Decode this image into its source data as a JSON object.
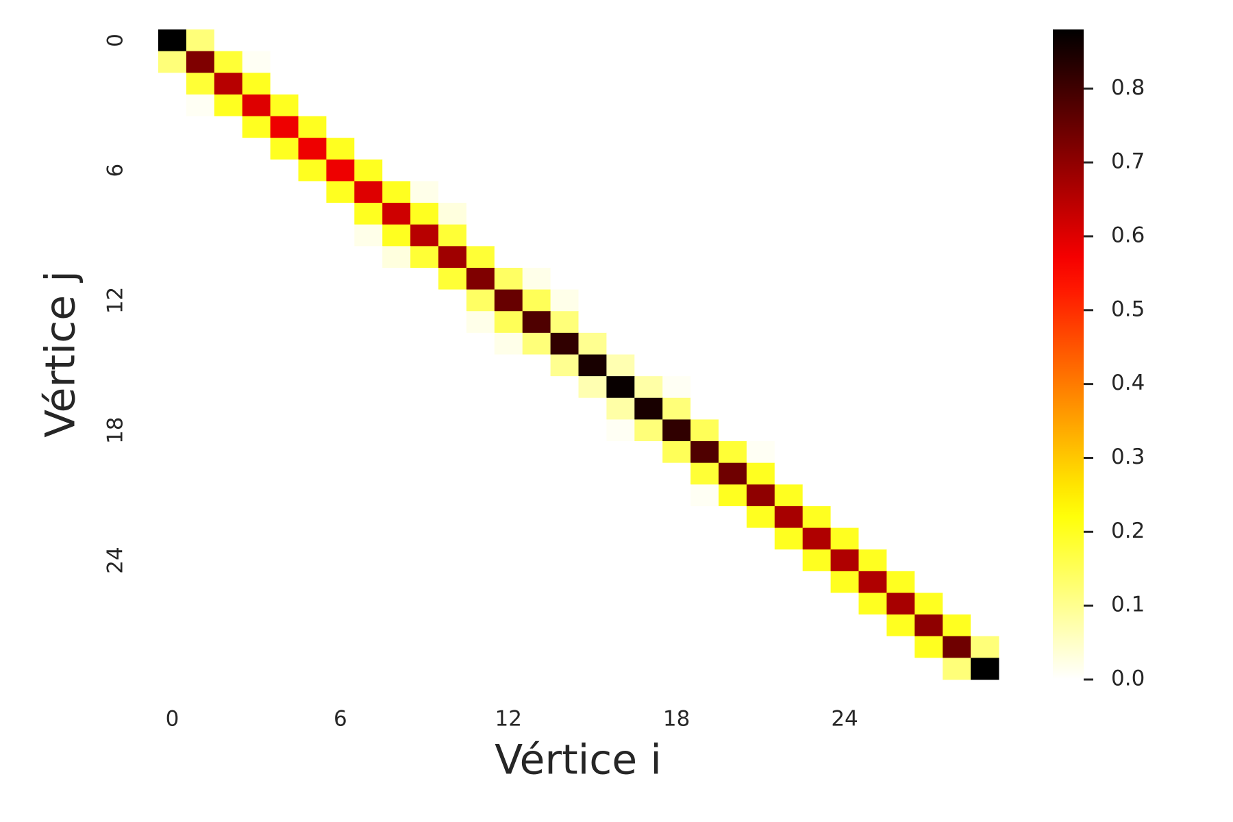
{
  "chart_data": {
    "type": "heatmap",
    "colormap": "hot_r",
    "xlabel": "Vértice i",
    "ylabel": "Vértice j",
    "xticks": [
      0,
      6,
      12,
      18,
      24
    ],
    "yticks": [
      0,
      6,
      12,
      18,
      24
    ],
    "zlim": [
      0,
      0.88
    ],
    "cticks": [
      {
        "value": 0,
        "label": "0.0"
      },
      0.1,
      0.2,
      0.3,
      0.4,
      0.5,
      0.6,
      0.7,
      0.8
    ],
    "z": [
      [
        0.88,
        0.12,
        0,
        0,
        0,
        0,
        0,
        0,
        0,
        0,
        0,
        0,
        0,
        0,
        0,
        0,
        0,
        0,
        0,
        0,
        0,
        0,
        0,
        0,
        0,
        0,
        0,
        0,
        0,
        0
      ],
      [
        0.12,
        0.72,
        0.18,
        0.01,
        0,
        0,
        0,
        0,
        0,
        0,
        0,
        0,
        0,
        0,
        0,
        0,
        0,
        0,
        0,
        0,
        0,
        0,
        0,
        0,
        0,
        0,
        0,
        0,
        0,
        0
      ],
      [
        0,
        0.18,
        0.65,
        0.2,
        0,
        0,
        0,
        0,
        0,
        0,
        0,
        0,
        0,
        0,
        0,
        0,
        0,
        0,
        0,
        0,
        0,
        0,
        0,
        0,
        0,
        0,
        0,
        0,
        0,
        0
      ],
      [
        0,
        0.01,
        0.2,
        0.6,
        0.2,
        0,
        0,
        0,
        0,
        0,
        0,
        0,
        0,
        0,
        0,
        0,
        0,
        0,
        0,
        0,
        0,
        0,
        0,
        0,
        0,
        0,
        0,
        0,
        0,
        0
      ],
      [
        0,
        0,
        0,
        0.2,
        0.58,
        0.2,
        0,
        0,
        0,
        0,
        0,
        0,
        0,
        0,
        0,
        0,
        0,
        0,
        0,
        0,
        0,
        0,
        0,
        0,
        0,
        0,
        0,
        0,
        0,
        0
      ],
      [
        0,
        0,
        0,
        0,
        0.2,
        0.58,
        0.2,
        0,
        0,
        0,
        0,
        0,
        0,
        0,
        0,
        0,
        0,
        0,
        0,
        0,
        0,
        0,
        0,
        0,
        0,
        0,
        0,
        0,
        0,
        0
      ],
      [
        0,
        0,
        0,
        0,
        0,
        0.2,
        0.58,
        0.2,
        0,
        0,
        0,
        0,
        0,
        0,
        0,
        0,
        0,
        0,
        0,
        0,
        0,
        0,
        0,
        0,
        0,
        0,
        0,
        0,
        0,
        0
      ],
      [
        0,
        0,
        0,
        0,
        0,
        0,
        0.2,
        0.6,
        0.2,
        0.02,
        0,
        0,
        0,
        0,
        0,
        0,
        0,
        0,
        0,
        0,
        0,
        0,
        0,
        0,
        0,
        0,
        0,
        0,
        0,
        0
      ],
      [
        0,
        0,
        0,
        0,
        0,
        0,
        0,
        0.2,
        0.62,
        0.2,
        0.03,
        0,
        0,
        0,
        0,
        0,
        0,
        0,
        0,
        0,
        0,
        0,
        0,
        0,
        0,
        0,
        0,
        0,
        0,
        0
      ],
      [
        0,
        0,
        0,
        0,
        0,
        0,
        0,
        0.02,
        0.2,
        0.65,
        0.18,
        0,
        0,
        0,
        0,
        0,
        0,
        0,
        0,
        0,
        0,
        0,
        0,
        0,
        0,
        0,
        0,
        0,
        0,
        0
      ],
      [
        0,
        0,
        0,
        0,
        0,
        0,
        0,
        0,
        0.03,
        0.18,
        0.68,
        0.18,
        0,
        0,
        0,
        0,
        0,
        0,
        0,
        0,
        0,
        0,
        0,
        0,
        0,
        0,
        0,
        0,
        0,
        0
      ],
      [
        0,
        0,
        0,
        0,
        0,
        0,
        0,
        0,
        0,
        0,
        0.18,
        0.72,
        0.14,
        0.02,
        0,
        0,
        0,
        0,
        0,
        0,
        0,
        0,
        0,
        0,
        0,
        0,
        0,
        0,
        0,
        0
      ],
      [
        0,
        0,
        0,
        0,
        0,
        0,
        0,
        0,
        0,
        0,
        0,
        0.14,
        0.75,
        0.15,
        0.02,
        0,
        0,
        0,
        0,
        0,
        0,
        0,
        0,
        0,
        0,
        0,
        0,
        0,
        0,
        0
      ],
      [
        0,
        0,
        0,
        0,
        0,
        0,
        0,
        0,
        0,
        0,
        0,
        0.02,
        0.15,
        0.78,
        0.12,
        0,
        0,
        0,
        0,
        0,
        0,
        0,
        0,
        0,
        0,
        0,
        0,
        0,
        0,
        0
      ],
      [
        0,
        0,
        0,
        0,
        0,
        0,
        0,
        0,
        0,
        0,
        0,
        0,
        0.02,
        0.12,
        0.82,
        0.1,
        0,
        0,
        0,
        0,
        0,
        0,
        0,
        0,
        0,
        0,
        0,
        0,
        0,
        0
      ],
      [
        0,
        0,
        0,
        0,
        0,
        0,
        0,
        0,
        0,
        0,
        0,
        0,
        0,
        0,
        0.1,
        0.85,
        0.07,
        0,
        0,
        0,
        0,
        0,
        0,
        0,
        0,
        0,
        0,
        0,
        0,
        0
      ],
      [
        0,
        0,
        0,
        0,
        0,
        0,
        0,
        0,
        0,
        0,
        0,
        0,
        0,
        0,
        0,
        0.07,
        0.87,
        0.08,
        0.01,
        0,
        0,
        0,
        0,
        0,
        0,
        0,
        0,
        0,
        0,
        0
      ],
      [
        0,
        0,
        0,
        0,
        0,
        0,
        0,
        0,
        0,
        0,
        0,
        0,
        0,
        0,
        0,
        0,
        0.08,
        0.85,
        0.12,
        0,
        0,
        0,
        0,
        0,
        0,
        0,
        0,
        0,
        0,
        0
      ],
      [
        0,
        0,
        0,
        0,
        0,
        0,
        0,
        0,
        0,
        0,
        0,
        0,
        0,
        0,
        0,
        0,
        0.01,
        0.12,
        0.82,
        0.15,
        0,
        0,
        0,
        0,
        0,
        0,
        0,
        0,
        0,
        0
      ],
      [
        0,
        0,
        0,
        0,
        0,
        0,
        0,
        0,
        0,
        0,
        0,
        0,
        0,
        0,
        0,
        0,
        0,
        0,
        0.15,
        0.78,
        0.18,
        0.01,
        0,
        0,
        0,
        0,
        0,
        0,
        0,
        0
      ],
      [
        0,
        0,
        0,
        0,
        0,
        0,
        0,
        0,
        0,
        0,
        0,
        0,
        0,
        0,
        0,
        0,
        0,
        0,
        0,
        0.18,
        0.74,
        0.2,
        0,
        0,
        0,
        0,
        0,
        0,
        0,
        0
      ],
      [
        0,
        0,
        0,
        0,
        0,
        0,
        0,
        0,
        0,
        0,
        0,
        0,
        0,
        0,
        0,
        0,
        0,
        0,
        0,
        0.01,
        0.2,
        0.7,
        0.2,
        0,
        0,
        0,
        0,
        0,
        0,
        0
      ],
      [
        0,
        0,
        0,
        0,
        0,
        0,
        0,
        0,
        0,
        0,
        0,
        0,
        0,
        0,
        0,
        0,
        0,
        0,
        0,
        0,
        0,
        0.2,
        0.67,
        0.2,
        0,
        0,
        0,
        0,
        0,
        0
      ],
      [
        0,
        0,
        0,
        0,
        0,
        0,
        0,
        0,
        0,
        0,
        0,
        0,
        0,
        0,
        0,
        0,
        0,
        0,
        0,
        0,
        0,
        0,
        0.2,
        0.66,
        0.2,
        0,
        0,
        0,
        0,
        0
      ],
      [
        0,
        0,
        0,
        0,
        0,
        0,
        0,
        0,
        0,
        0,
        0,
        0,
        0,
        0,
        0,
        0,
        0,
        0,
        0,
        0,
        0,
        0,
        0,
        0.2,
        0.66,
        0.2,
        0,
        0,
        0,
        0
      ],
      [
        0,
        0,
        0,
        0,
        0,
        0,
        0,
        0,
        0,
        0,
        0,
        0,
        0,
        0,
        0,
        0,
        0,
        0,
        0,
        0,
        0,
        0,
        0,
        0,
        0.2,
        0.66,
        0.2,
        0,
        0,
        0
      ],
      [
        0,
        0,
        0,
        0,
        0,
        0,
        0,
        0,
        0,
        0,
        0,
        0,
        0,
        0,
        0,
        0,
        0,
        0,
        0,
        0,
        0,
        0,
        0,
        0,
        0,
        0.2,
        0.67,
        0.2,
        0,
        0
      ],
      [
        0,
        0,
        0,
        0,
        0,
        0,
        0,
        0,
        0,
        0,
        0,
        0,
        0,
        0,
        0,
        0,
        0,
        0,
        0,
        0,
        0,
        0,
        0,
        0,
        0,
        0,
        0.2,
        0.7,
        0.2,
        0
      ],
      [
        0,
        0,
        0,
        0,
        0,
        0,
        0,
        0,
        0,
        0,
        0,
        0,
        0,
        0,
        0,
        0,
        0,
        0,
        0,
        0,
        0,
        0,
        0,
        0,
        0,
        0,
        0,
        0.2,
        0.74,
        0.12
      ],
      [
        0,
        0,
        0,
        0,
        0,
        0,
        0,
        0,
        0,
        0,
        0,
        0,
        0,
        0,
        0,
        0,
        0,
        0,
        0,
        0,
        0,
        0,
        0,
        0,
        0,
        0,
        0,
        0,
        0.12,
        0.88
      ]
    ]
  }
}
